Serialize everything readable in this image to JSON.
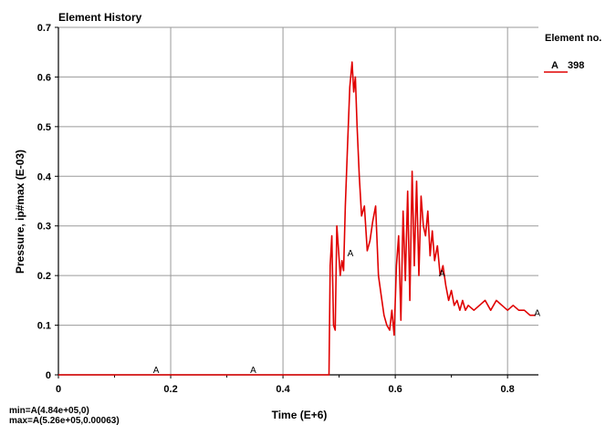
{
  "chart_data": {
    "type": "line",
    "title": "Element History",
    "xlabel": "Time (E+6)",
    "ylabel": "Pressure, ip#max (E-03)",
    "xlim": [
      0,
      0.855
    ],
    "ylim": [
      0,
      0.7
    ],
    "grid": true,
    "legend_position": "top-right",
    "x_ticks": [
      0,
      0.2,
      0.4,
      0.6,
      0.8
    ],
    "y_ticks": [
      0,
      0.1,
      0.2,
      0.3,
      0.4,
      0.5,
      0.6,
      0.7
    ],
    "x_tick_labels": [
      "0",
      "0.2",
      "0.4",
      "0.6",
      "0.8"
    ],
    "y_tick_labels": [
      "0",
      "0.1",
      "0.2",
      "0.3",
      "0.4",
      "0.5",
      "0.6",
      "0.7"
    ],
    "legend": {
      "header": "Element no.",
      "entries": [
        {
          "marker": "A",
          "label": "398",
          "color": "#e00000"
        }
      ]
    },
    "series": [
      {
        "name": "398",
        "marker": "A",
        "color": "#e00000",
        "x": [
          0,
          0.1,
          0.2,
          0.3,
          0.4,
          0.45,
          0.479,
          0.482,
          0.484,
          0.487,
          0.49,
          0.493,
          0.496,
          0.499,
          0.502,
          0.505,
          0.508,
          0.511,
          0.515,
          0.519,
          0.523,
          0.526,
          0.529,
          0.532,
          0.536,
          0.54,
          0.545,
          0.55,
          0.555,
          0.56,
          0.565,
          0.57,
          0.575,
          0.58,
          0.585,
          0.59,
          0.594,
          0.598,
          0.602,
          0.606,
          0.61,
          0.614,
          0.618,
          0.622,
          0.626,
          0.63,
          0.634,
          0.638,
          0.642,
          0.646,
          0.65,
          0.654,
          0.658,
          0.662,
          0.666,
          0.67,
          0.675,
          0.68,
          0.685,
          0.69,
          0.695,
          0.7,
          0.705,
          0.71,
          0.715,
          0.72,
          0.725,
          0.73,
          0.74,
          0.75,
          0.76,
          0.77,
          0.78,
          0.79,
          0.8,
          0.81,
          0.82,
          0.83,
          0.84,
          0.85
        ],
        "values": [
          0,
          0,
          0,
          0,
          0,
          0,
          0,
          0,
          0.22,
          0.28,
          0.1,
          0.09,
          0.3,
          0.25,
          0.2,
          0.23,
          0.21,
          0.34,
          0.46,
          0.58,
          0.63,
          0.57,
          0.6,
          0.5,
          0.4,
          0.32,
          0.34,
          0.25,
          0.27,
          0.31,
          0.34,
          0.2,
          0.16,
          0.12,
          0.1,
          0.09,
          0.13,
          0.08,
          0.22,
          0.28,
          0.11,
          0.33,
          0.19,
          0.37,
          0.15,
          0.41,
          0.22,
          0.39,
          0.2,
          0.36,
          0.3,
          0.28,
          0.33,
          0.24,
          0.29,
          0.23,
          0.26,
          0.2,
          0.22,
          0.18,
          0.15,
          0.17,
          0.14,
          0.15,
          0.13,
          0.15,
          0.13,
          0.14,
          0.13,
          0.14,
          0.15,
          0.13,
          0.15,
          0.14,
          0.13,
          0.14,
          0.13,
          0.13,
          0.12,
          0.12
        ]
      }
    ],
    "point_markers": [
      {
        "label": "A",
        "x": 0.174,
        "y": 0
      },
      {
        "label": "A",
        "x": 0.347,
        "y": 0
      },
      {
        "label": "A",
        "x": 0.52,
        "y": 0.235
      },
      {
        "label": "A",
        "x": 0.683,
        "y": 0.195
      },
      {
        "label": "A",
        "x": 0.853,
        "y": 0.115
      }
    ],
    "annotations": {
      "min_text": "min=A(4.84e+05,0)",
      "max_text": "max=A(5.26e+05,0.00063)"
    }
  }
}
